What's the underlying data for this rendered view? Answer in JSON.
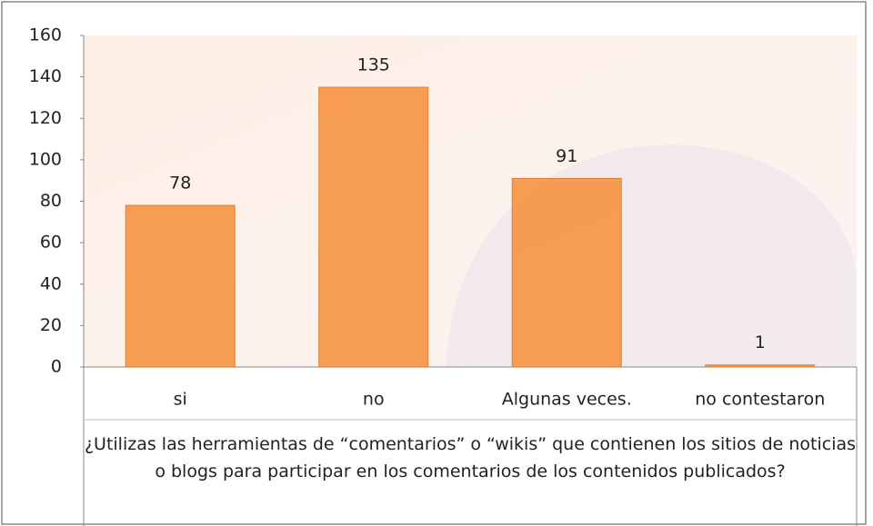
{
  "chart_data": {
    "type": "bar",
    "xlabel": "¿Utilizas las herramientas de “comentarios” o “wikis” que contienen los sitios de noticias o blogs  para  participar en los comentarios de los contenidos publicados?",
    "categories": [
      "si",
      "no",
      "Algunas veces.",
      "no contestaron"
    ],
    "values": [
      78,
      135,
      91,
      1
    ],
    "color": "#f79646",
    "ylim": [
      0,
      160
    ],
    "yticks": [
      0,
      20,
      40,
      60,
      80,
      100,
      120,
      140,
      160
    ],
    "grid": false
  }
}
